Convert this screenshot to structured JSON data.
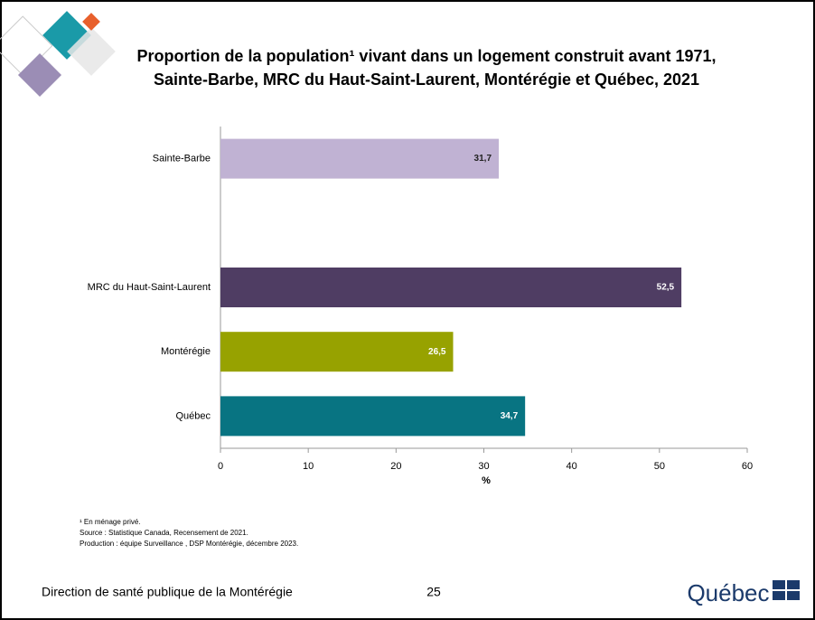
{
  "chart_data": {
    "type": "hbar",
    "title": [
      "Proportion de la population¹ vivant dans un logement construit avant 1971,",
      "Sainte-Barbe, MRC du Haut-Saint-Laurent, Montérégie et Québec, 2021"
    ],
    "categories": [
      "Sainte-Barbe",
      null,
      "MRC du Haut-Saint-Laurent",
      "Montérégie",
      "Québec"
    ],
    "values": [
      31.7,
      null,
      52.5,
      26.5,
      34.7
    ],
    "value_labels": [
      "31,7",
      null,
      "52,5",
      "26,5",
      "34,7"
    ],
    "colors": [
      "#c0b2d3",
      null,
      "#4f3d63",
      "#97a200",
      "#087482"
    ],
    "xlim": [
      0,
      60
    ],
    "xticks": [
      0,
      10,
      20,
      30,
      40,
      50,
      60
    ],
    "xlabel": "%"
  },
  "notes": [
    "¹ En ménage privé.",
    "Source : Statistique Canada, Recensement de 2021.",
    "Production : équipe Surveillance , DSP Montérégie, décembre 2023."
  ],
  "footer": {
    "left": "Direction de santé publique de la Montérégie",
    "page": "25",
    "logo": "Québec"
  }
}
